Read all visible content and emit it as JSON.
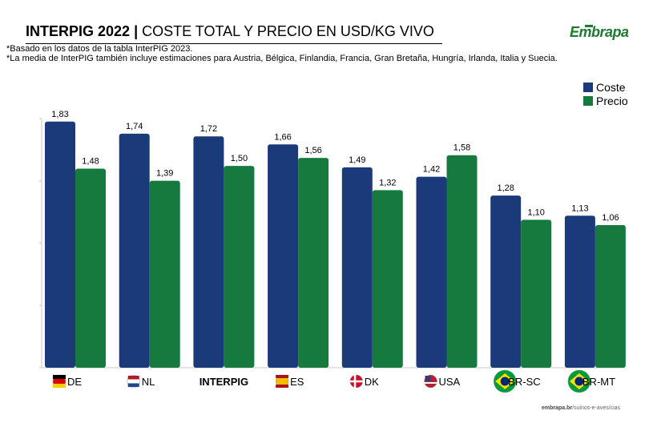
{
  "header": {
    "title_bold": "INTERPIG 2022",
    "title_sep": " | ",
    "title_rest": "COSTE TOTAL Y PRECIO EN USD/KG VIVO",
    "note_1": "*Basado en los datos de la tabla InterPIG 2023.",
    "note_2": "*La media de InterPIG también incluye estimaciones para Austria, Bélgica, Finlandia, Francia, Gran Bretaña, Hungría, Irlanda, Italia y Suecia."
  },
  "logo": {
    "text": "Embrapa"
  },
  "footer": {
    "site": "embrapa.br",
    "path": "/suinos-e-aves/cias"
  },
  "colors": {
    "coste": "#1b3a7a",
    "precio": "#167a3e",
    "axis": "#c8c8c8"
  },
  "chart_data": {
    "type": "bar",
    "categories": [
      "DE",
      "NL",
      "INTERPIG",
      "ES",
      "DK",
      "USA",
      "BR-SC",
      "BR-MT"
    ],
    "flags": [
      "de-flag-icon",
      "nl-flag-icon",
      "",
      "es-flag-icon",
      "dk-flag-icon",
      "us-flag-icon",
      "br-flag-icon",
      "br-flag-icon"
    ],
    "series": [
      {
        "name": "Coste",
        "values": [
          1.83,
          1.74,
          1.72,
          1.66,
          1.49,
          1.42,
          1.28,
          1.13
        ],
        "labels": [
          "1,83",
          "1,74",
          "1,72",
          "1,66",
          "1,49",
          "1,42",
          "1,28",
          "1,13"
        ]
      },
      {
        "name": "Precio",
        "values": [
          1.48,
          1.39,
          1.5,
          1.56,
          1.32,
          1.58,
          1.1,
          1.06
        ],
        "labels": [
          "1,48",
          "1,39",
          "1,50",
          "1,56",
          "1,32",
          "1,58",
          "1,10",
          "1,06"
        ]
      }
    ],
    "ylim": [
      0,
      1.9
    ],
    "legend": "top-right",
    "grid": false
  }
}
